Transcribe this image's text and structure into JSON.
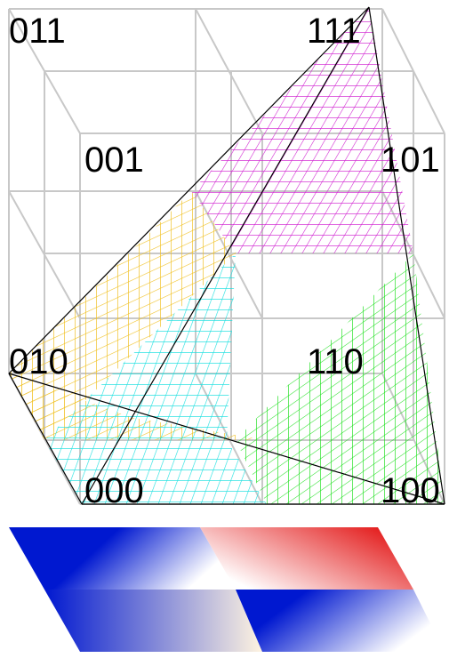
{
  "labels": [
    "011",
    "111",
    "001",
    "101",
    "010",
    "110",
    "000",
    "100"
  ]
}
